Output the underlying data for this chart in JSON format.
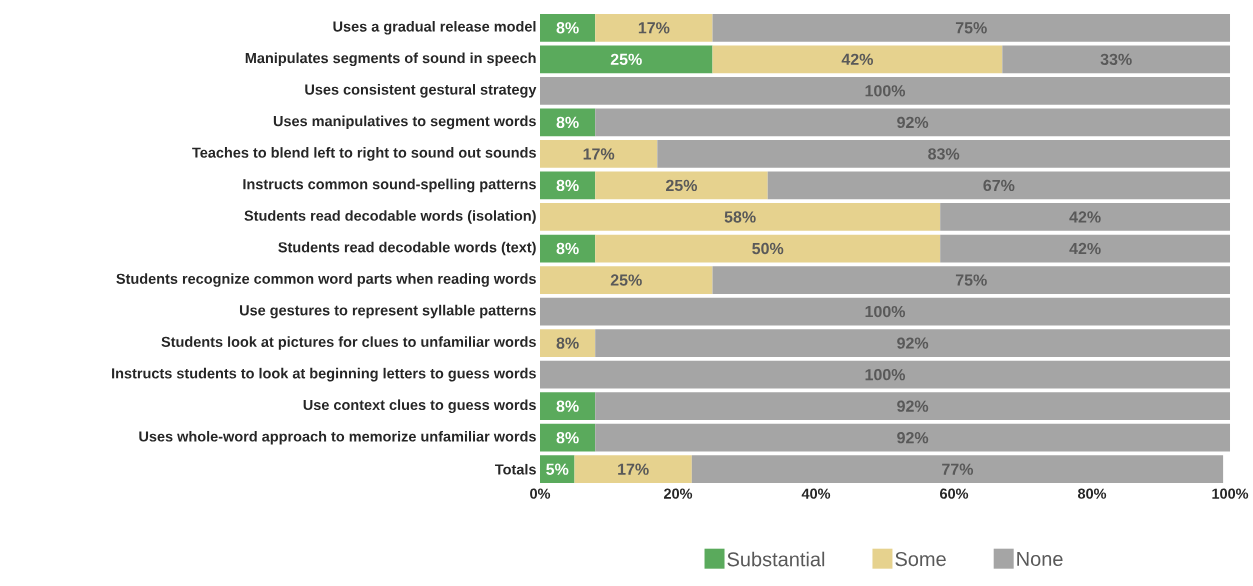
{
  "chart_data": {
    "type": "bar",
    "orientation": "horizontal",
    "stacked": true,
    "categories": [
      "Uses a gradual release model",
      "Manipulates segments of sound in speech",
      "Uses consistent gestural strategy",
      "Uses manipulatives to segment words",
      "Teaches to blend left to right to sound out sounds",
      "Instructs common sound-spelling patterns",
      "Students read decodable words (isolation)",
      "Students read decodable words (text)",
      "Students recognize common word parts when reading words",
      "Use gestures to represent syllable patterns",
      "Students look at pictures for clues to unfamiliar words",
      "Instructs students to look at beginning letters to guess words",
      "Use context clues to guess words",
      "Uses whole-word approach to memorize unfamiliar words",
      "Totals"
    ],
    "series": [
      {
        "name": "Substantial",
        "color": "#5aaa5c",
        "values": [
          8,
          25,
          null,
          8,
          null,
          8,
          null,
          8,
          null,
          null,
          null,
          null,
          8,
          8,
          5
        ],
        "value_labels": [
          "8%",
          "25%",
          null,
          "8%",
          null,
          "8%",
          null,
          "8%",
          null,
          null,
          null,
          null,
          "8%",
          "8%",
          "5%"
        ]
      },
      {
        "name": "Some",
        "color": "#e6d28e",
        "values": [
          17,
          42,
          null,
          null,
          17,
          25,
          58,
          50,
          25,
          null,
          8,
          null,
          null,
          null,
          17
        ],
        "value_labels": [
          "17%",
          "42%",
          null,
          null,
          "17%",
          "25%",
          "58%",
          "50%",
          "25%",
          null,
          "8%",
          null,
          null,
          null,
          "17%"
        ]
      },
      {
        "name": "None",
        "color": "#a5a5a5",
        "values": [
          75,
          33,
          100,
          92,
          83,
          67,
          42,
          42,
          75,
          100,
          92,
          100,
          92,
          92,
          77
        ],
        "value_labels": [
          "75%",
          "33%",
          "100%",
          "92%",
          "83%",
          "67%",
          "42%",
          "42%",
          "75%",
          "100%",
          "92%",
          "100%",
          "92%",
          "92%",
          "77%"
        ]
      }
    ],
    "xlim": [
      0,
      100
    ],
    "xticks": [
      {
        "value": 0,
        "label": "0%"
      },
      {
        "value": 20,
        "label": "20%"
      },
      {
        "value": 40,
        "label": "40%"
      },
      {
        "value": 60,
        "label": "60%"
      },
      {
        "value": 80,
        "label": "80%"
      },
      {
        "value": 100,
        "label": "100%"
      }
    ],
    "legend": "bottom"
  }
}
